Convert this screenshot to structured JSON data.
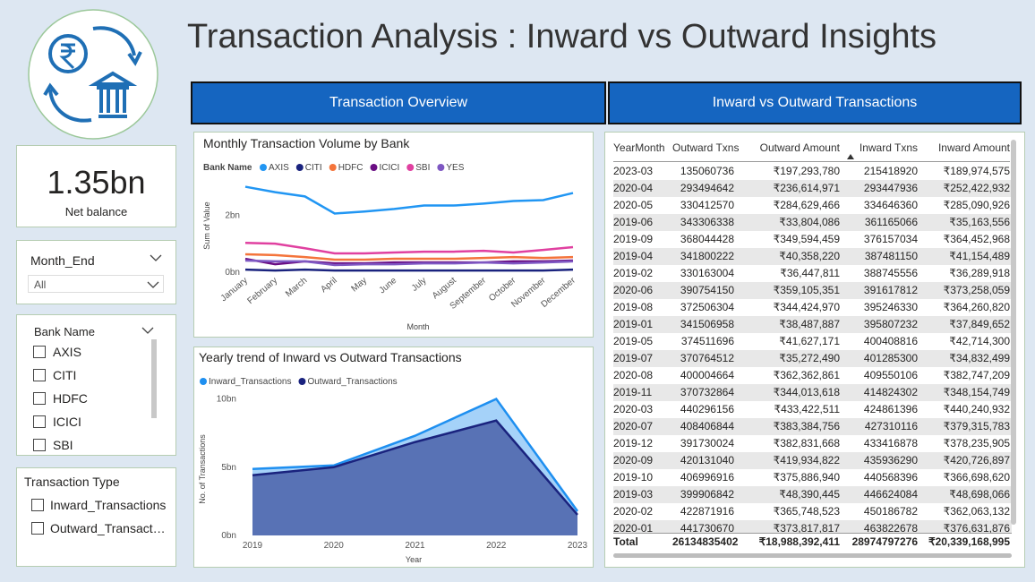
{
  "header": {
    "title": "Transaction Analysis : Inward vs Outward Insights"
  },
  "kpi": {
    "value": "1.35bn",
    "label": "Net balance"
  },
  "tabs": [
    "Transaction Overview",
    "Inward vs Outward Transactions"
  ],
  "slicers": {
    "month_end": {
      "title": "Month_End",
      "selected": "All"
    },
    "bank_name": {
      "title": "Bank Name",
      "options": [
        "AXIS",
        "CITI",
        "HDFC",
        "ICICI",
        "SBI"
      ]
    },
    "transaction_type": {
      "title": "Transaction Type",
      "options": [
        "Inward_Transactions",
        "Outward_Transactions"
      ]
    }
  },
  "chart_data": [
    {
      "type": "line",
      "title": "Monthly Transaction Volume by Bank",
      "legend_title": "Bank Name",
      "legend": "top-left",
      "x_label": "Month",
      "y_label": "Sum of Value",
      "categories": [
        "January",
        "February",
        "March",
        "April",
        "May",
        "June",
        "July",
        "August",
        "September",
        "October",
        "November",
        "December"
      ],
      "series": [
        {
          "name": "AXIS",
          "color": "#2196f3",
          "values": [
            3.0,
            2.81,
            2.66,
            2.06,
            2.13,
            2.22,
            2.34,
            2.34,
            2.41,
            2.5,
            2.53,
            2.78
          ]
        },
        {
          "name": "CITI",
          "color": "#1a237e",
          "values": [
            0.09,
            0.06,
            0.09,
            0.06,
            0.06,
            0.06,
            0.06,
            0.06,
            0.06,
            0.06,
            0.06,
            0.09
          ]
        },
        {
          "name": "HDFC",
          "color": "#f4743b",
          "values": [
            0.63,
            0.6,
            0.53,
            0.44,
            0.44,
            0.47,
            0.47,
            0.47,
            0.5,
            0.53,
            0.5,
            0.53
          ]
        },
        {
          "name": "ICICI",
          "color": "#6a0d83",
          "values": [
            0.47,
            0.28,
            0.38,
            0.31,
            0.31,
            0.34,
            0.34,
            0.34,
            0.34,
            0.38,
            0.38,
            0.41
          ]
        },
        {
          "name": "SBI",
          "color": "#e040a0",
          "values": [
            1.03,
            1.0,
            0.84,
            0.66,
            0.66,
            0.69,
            0.72,
            0.72,
            0.75,
            0.69,
            0.78,
            0.88
          ]
        },
        {
          "name": "YES",
          "color": "#7e57c2",
          "values": [
            0.41,
            0.38,
            0.38,
            0.25,
            0.28,
            0.28,
            0.31,
            0.31,
            0.34,
            0.31,
            0.34,
            0.38
          ]
        }
      ],
      "ylim": [
        0,
        3.3
      ],
      "yticks": [
        {
          "value": 0,
          "label": "0bn"
        },
        {
          "value": 2,
          "label": "2bn"
        }
      ]
    },
    {
      "type": "area",
      "title": "Yearly trend of Inward vs Outward Transactions",
      "legend": "top-left",
      "x_label": "Year",
      "y_label": "No. of Transactions",
      "x": [
        2019,
        2020,
        2021,
        2022,
        2023
      ],
      "xlim": [
        2019,
        2023
      ],
      "xticks": [
        2019,
        2020,
        2021,
        2022,
        2023
      ],
      "series": [
        {
          "name": "Inward_Transactions",
          "color": "#1e8ff0",
          "values": [
            4.87,
            5.13,
            7.3,
            10.0,
            1.78
          ]
        },
        {
          "name": "Outward_Transactions",
          "color": "#1a237e",
          "values": [
            4.41,
            5.0,
            6.84,
            8.42,
            1.51
          ]
        }
      ],
      "ylim": [
        0,
        10.3
      ],
      "yticks": [
        {
          "value": 0,
          "label": "0bn"
        },
        {
          "value": 5,
          "label": "5bn"
        },
        {
          "value": 10,
          "label": "10bn"
        }
      ]
    }
  ],
  "table": {
    "columns": [
      "YearMonth",
      "Outward Txns",
      "Outward Amount",
      "Inward Txns",
      "Inward Amount"
    ],
    "rows": [
      [
        "2023-03",
        "135060736",
        "₹197,293,780",
        "215418920",
        "₹189,974,575"
      ],
      [
        "2020-04",
        "293494642",
        "₹236,614,971",
        "293447936",
        "₹252,422,932"
      ],
      [
        "2020-05",
        "330412570",
        "₹284,629,466",
        "334646360",
        "₹285,090,926"
      ],
      [
        "2019-06",
        "343306338",
        "₹33,804,086",
        "361165066",
        "₹35,163,556"
      ],
      [
        "2019-09",
        "368044428",
        "₹349,594,459",
        "376157034",
        "₹364,452,968"
      ],
      [
        "2019-04",
        "341800222",
        "₹40,358,220",
        "387481150",
        "₹41,154,489"
      ],
      [
        "2019-02",
        "330163004",
        "₹36,447,811",
        "388745556",
        "₹36,289,918"
      ],
      [
        "2020-06",
        "390754150",
        "₹359,105,351",
        "391617812",
        "₹373,258,059"
      ],
      [
        "2019-08",
        "372506304",
        "₹344,424,970",
        "395246330",
        "₹364,260,820"
      ],
      [
        "2019-01",
        "341506958",
        "₹38,487,887",
        "395807232",
        "₹37,849,652"
      ],
      [
        "2019-05",
        "374511696",
        "₹41,627,171",
        "400408816",
        "₹42,714,300"
      ],
      [
        "2019-07",
        "370764512",
        "₹35,272,490",
        "401285300",
        "₹34,832,499"
      ],
      [
        "2020-08",
        "400004664",
        "₹362,362,861",
        "409550106",
        "₹382,747,209"
      ],
      [
        "2019-11",
        "370732864",
        "₹344,013,618",
        "414824302",
        "₹348,154,749"
      ],
      [
        "2020-03",
        "440296156",
        "₹433,422,511",
        "424861396",
        "₹440,240,932"
      ],
      [
        "2020-07",
        "408406844",
        "₹383,384,756",
        "427310116",
        "₹379,315,783"
      ],
      [
        "2019-12",
        "391730024",
        "₹382,831,668",
        "433416878",
        "₹378,235,905"
      ],
      [
        "2020-09",
        "420131040",
        "₹419,934,822",
        "435936290",
        "₹420,726,897"
      ],
      [
        "2019-10",
        "406996916",
        "₹375,886,940",
        "440568396",
        "₹366,698,620"
      ],
      [
        "2019-03",
        "399906842",
        "₹48,390,445",
        "446624084",
        "₹48,698,066"
      ],
      [
        "2020-02",
        "422871916",
        "₹365,748,523",
        "450186782",
        "₹362,063,132"
      ],
      [
        "2020-01",
        "441730670",
        "₹373,817,817",
        "463822678",
        "₹376,631,876"
      ]
    ],
    "total": [
      "Total",
      "26134835402",
      "₹18,988,392,411",
      "28974797276",
      "₹20,339,168,995"
    ]
  }
}
